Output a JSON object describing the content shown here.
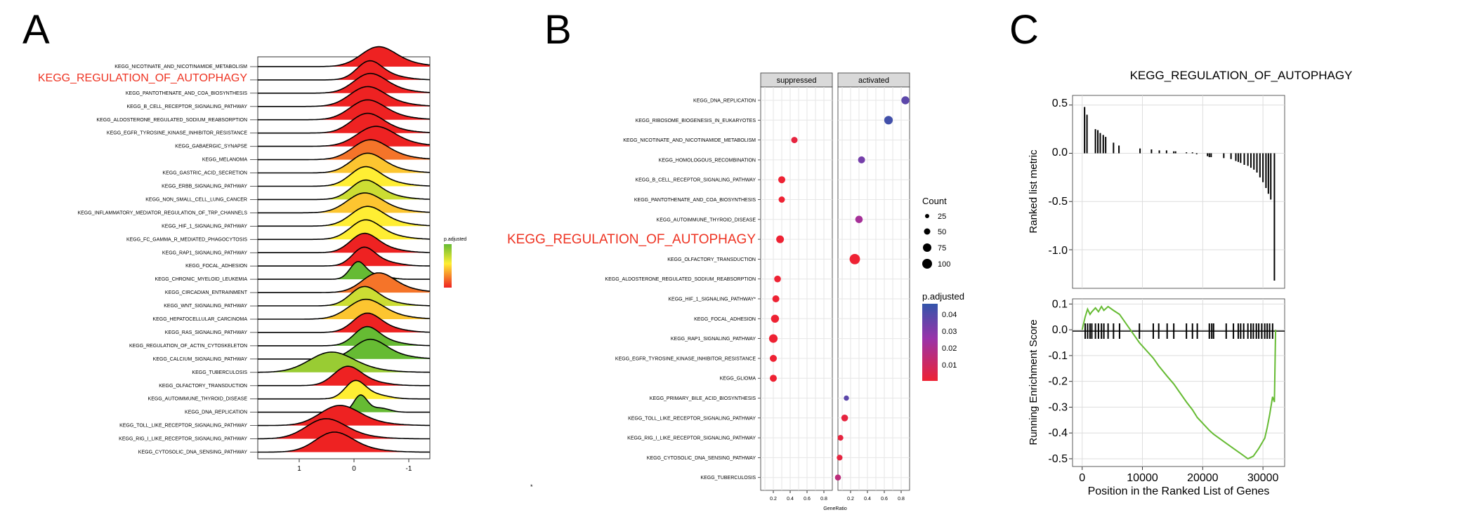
{
  "panels": {
    "a": {
      "letter": "A",
      "pathways": [
        "KEGG_NICOTINATE_AND_NICOTINAMIDE_METABOLISM",
        "KEGG_REGULATION_OF_AUTOPHAGY",
        "KEGG_PANTOTHENATE_AND_COA_BIOSYNTHESIS",
        "KEGG_B_CELL_RECEPTOR_SIGNALING_PATHWAY",
        "KEGG_ALDOSTERONE_REGULATED_SODIUM_REABSORPTION",
        "KEGG_EGFR_TYROSINE_KINASE_INHIBITOR_RESISTANCE",
        "KEGG_GABAERGIC_SYNAPSE",
        "KEGG_MELANOMA",
        "KEGG_GASTRIC_ACID_SECRETION",
        "KEGG_ERBB_SIGNALING_PATHWAY",
        "KEGG_NON_SMALL_CELL_LUNG_CANCER",
        "KEGG_INFLAMMATORY_MEDIATOR_REGULATION_OF_TRP_CHANNELS",
        "KEGG_HIF_1_SIGNALING_PATHWAY",
        "KEGG_FC_GAMMA_R_MEDIATED_PHAGOCYTOSIS",
        "KEGG_RAP1_SIGNALING_PATHWAY",
        "KEGG_FOCAL_ADHESION",
        "KEGG_CHRONIC_MYELOID_LEUKEMIA",
        "KEGG_CIRCADIAN_ENTRAINMENT",
        "KEGG_WNT_SIGNALING_PATHWAY",
        "KEGG_HEPATOCELLULAR_CARCINOMA",
        "KEGG_RAS_SIGNALING_PATHWAY",
        "KEGG_REGULATION_OF_ACTIN_CYTOSKELETON",
        "KEGG_CALCIUM_SIGNALING_PATHWAY",
        "KEGG_TUBERCULOSIS",
        "KEGG_OLFACTORY_TRANSDUCTION",
        "KEGG_AUTOIMMUNE_THYROID_DISEASE",
        "KEGG_DNA_REPLICATION",
        "KEGG_TOLL_LIKE_RECEPTOR_SIGNALING_PATHWAY",
        "KEGG_RIG_I_LIKE_RECEPTOR_SIGNALING_PATHWAY",
        "KEGG_CYTOSOLIC_DNA_SENSING_PATHWAY"
      ],
      "highlight_index": 1,
      "ticks": [
        "1",
        "0",
        "-1"
      ],
      "legend_title": "p.adjusted"
    },
    "b": {
      "letter": "B",
      "facets": [
        "suppressed",
        "activated"
      ],
      "xlabel": "GeneRatio",
      "x_ticks": [
        "0.2",
        "0.4",
        "0.6",
        "0.8"
      ],
      "size_legend_title": "Count",
      "size_legend_values": [
        "25",
        "50",
        "75",
        "100"
      ],
      "color_legend_title": "p.adjusted",
      "color_legend_ticks": [
        "0.04",
        "0.03",
        "0.02",
        "0.01"
      ],
      "highlight_index": 7,
      "stray_mark": "*"
    },
    "c": {
      "letter": "C",
      "title": "KEGG_REGULATION_OF_AUTOPHAGY",
      "top_ylabel": "Ranked list metric",
      "bottom_ylabel": "Running Enrichment Score",
      "xlabel": "Position in the Ranked List of Genes",
      "top_y_ticks": [
        "0.5",
        "0.0",
        "-0.5",
        "-1.0"
      ],
      "bottom_y_ticks": [
        "0.1",
        "0.0",
        "-0.1",
        "-0.2",
        "-0.3",
        "-0.4",
        "-0.5"
      ],
      "x_ticks": [
        "0",
        "10000",
        "20000",
        "30000"
      ]
    }
  },
  "colors": {
    "high_p": "#66bb33",
    "mid_p": "#ffee33",
    "low_p": "#ee2222",
    "highlight_label": "#ee3322",
    "enrichment_line": "#66bb33",
    "dot_high_p": "#3355aa",
    "dot_low_p": "#ee2233"
  },
  "chart_data": [
    {
      "type": "ridgeline",
      "x_scale": "reversed",
      "xlim": [
        1.8,
        -1.3
      ],
      "categories": [
        "KEGG_NICOTINATE_AND_NICOTINAMIDE_METABOLISM",
        "KEGG_REGULATION_OF_AUTOPHAGY",
        "KEGG_PANTOTHENATE_AND_COA_BIOSYNTHESIS",
        "KEGG_B_CELL_RECEPTOR_SIGNALING_PATHWAY",
        "KEGG_ALDOSTERONE_REGULATED_SODIUM_REABSORPTION",
        "KEGG_EGFR_TYROSINE_KINASE_INHIBITOR_RESISTANCE",
        "KEGG_GABAERGIC_SYNAPSE",
        "KEGG_MELANOMA",
        "KEGG_GASTRIC_ACID_SECRETION",
        "KEGG_ERBB_SIGNALING_PATHWAY",
        "KEGG_NON_SMALL_CELL_LUNG_CANCER",
        "KEGG_INFLAMMATORY_MEDIATOR_REGULATION_OF_TRP_CHANNELS",
        "KEGG_HIF_1_SIGNALING_PATHWAY",
        "KEGG_FC_GAMMA_R_MEDIATED_PHAGOCYTOSIS",
        "KEGG_RAP1_SIGNALING_PATHWAY",
        "KEGG_FOCAL_ADHESION",
        "KEGG_CHRONIC_MYELOID_LEUKEMIA",
        "KEGG_CIRCADIAN_ENTRAINMENT",
        "KEGG_WNT_SIGNALING_PATHWAY",
        "KEGG_HEPATOCELLULAR_CARCINOMA",
        "KEGG_RAS_SIGNALING_PATHWAY",
        "KEGG_REGULATION_OF_ACTIN_CYTOSKELETON",
        "KEGG_CALCIUM_SIGNALING_PATHWAY",
        "KEGG_TUBERCULOSIS",
        "KEGG_OLFACTORY_TRANSDUCTION",
        "KEGG_AUTOIMMUNE_THYROID_DISEASE",
        "KEGG_DNA_REPLICATION",
        "KEGG_TOLL_LIKE_RECEPTOR_SIGNALING_PATHWAY",
        "KEGG_RIG_I_LIKE_RECEPTOR_SIGNALING_PATHWAY",
        "KEGG_CYTOSOLIC_DNA_SENSING_PATHWAY"
      ],
      "peaks": [
        -0.35,
        -0.2,
        -0.2,
        -0.15,
        -0.15,
        -0.15,
        -0.3,
        -0.2,
        -0.15,
        -0.12,
        -0.12,
        -0.1,
        -0.15,
        -0.12,
        -0.1,
        -0.1,
        0.0,
        -0.35,
        -0.1,
        -0.12,
        -0.15,
        -0.15,
        -0.2,
        0.5,
        0.2,
        0.05,
        -0.05,
        0.35,
        0.6,
        0.45
      ],
      "widths": [
        0.3,
        0.22,
        0.28,
        0.3,
        0.3,
        0.28,
        0.32,
        0.3,
        0.28,
        0.26,
        0.25,
        0.3,
        0.28,
        0.26,
        0.24,
        0.2,
        0.14,
        0.28,
        0.24,
        0.3,
        0.24,
        0.22,
        0.28,
        0.38,
        0.24,
        0.18,
        0.12,
        0.34,
        0.34,
        0.32
      ],
      "p_adjusted": [
        0.01,
        0.015,
        0.012,
        0.011,
        0.012,
        0.015,
        0.02,
        0.03,
        0.04,
        0.045,
        0.05,
        0.04,
        0.045,
        0.045,
        0.01,
        0.012,
        0.06,
        0.03,
        0.05,
        0.04,
        0.02,
        0.06,
        0.06,
        0.055,
        0.01,
        0.045,
        0.06,
        0.01,
        0.01,
        0.01
      ],
      "xticks": [
        1,
        0,
        -1
      ]
    },
    {
      "type": "scatter",
      "facets": [
        "suppressed",
        "activated"
      ],
      "categories": [
        "KEGG_DNA_REPLICATION",
        "KEGG_RIBOSOME_BIOGENESIS_IN_EUKARYOTES",
        "KEGG_NICOTINATE_AND_NICOTINAMIDE_METABOLISM",
        "KEGG_HOMOLOGOUS_RECOMBINATION",
        "KEGG_B_CELL_RECEPTOR_SIGNALING_PATHWAY",
        "KEGG_PANTOTHENATE_AND_COA_BIOSYNTHESIS",
        "KEGG_AUTOIMMUNE_THYROID_DISEASE",
        "KEGG_REGULATION_OF_AUTOPHAGY",
        "KEGG_OLFACTORY_TRANSDUCTION",
        "KEGG_ALDOSTERONE_REGULATED_SODIUM_REABSORPTION",
        "KEGG_HIF_1_SIGNALING_PATHWAY",
        "KEGG_FOCAL_ADHESION",
        "KEGG_RAP1_SIGNALING_PATHWAY",
        "KEGG_EGFR_TYROSINE_KINASE_INHIBITOR_RESISTANCE",
        "KEGG_GLIOMA",
        "KEGG_PRIMARY_BILE_ACID_BIOSYNTHESIS",
        "KEGG_TOLL_LIKE_RECEPTOR_SIGNALING_PATHWAY",
        "KEGG_RIG_I_LIKE_RECEPTOR_SIGNALING_PATHWAY",
        "KEGG_CYTOSOLIC_DNA_SENSING_PATHWAY",
        "KEGG_TUBERCULOSIS"
      ],
      "category_labels": [
        "KEGG_DNA_REPLICATION",
        "KEGG_RIBOSOME_BIOGENESIS_IN_EUKARYOTES",
        "KEGG_NICOTINATE_AND_NICOTINAMIDE_METABOLISM",
        "KEGG_HOMOLOGOUS_RECOMBINATION",
        "KEGG_B_CELL_RECEPTOR_SIGNALING_PATHWAY",
        "KEGG_PANTOTHENATE_AND_COA_BIOSYNTHESIS",
        "KEGG_AUTOIMMUNE_THYROID_DISEASE",
        "KEGG_REGULATION_OF_AUTOPHAGY",
        "KEGG_OLFACTORY_TRANSDUCTION",
        "KEGG_ALDOSTERONE_REGULATED_SODIUM_REABSORPTION",
        "KEGG_HIF_1_SIGNALING_PATHWAY*",
        "KEGG_FOCAL_ADHESION",
        "KEGG_RAP1_SIGNALING_PATHWAY",
        "KEGG_EGFR_TYROSINE_KINASE_INHIBITOR_RESISTANCE",
        "KEGG_GLIOMA",
        "KEGG_PRIMARY_BILE_ACID_BIOSYNTHESIS",
        "KEGG_TOLL_LIKE_RECEPTOR_SIGNALING_PATHWAY",
        "KEGG_RIG_I_LIKE_RECEPTOR_SIGNALING_PATHWAY",
        "KEGG_CYTOSOLIC_DNA_SENSING_PATHWAY",
        "KEGG_TUBERCULOSIS"
      ],
      "points": [
        {
          "facet": "activated",
          "gene_ratio": 0.85,
          "count": 45,
          "p_adjusted": 0.04
        },
        {
          "facet": "activated",
          "gene_ratio": 0.65,
          "count": 55,
          "p_adjusted": 0.045
        },
        {
          "facet": "suppressed",
          "gene_ratio": 0.45,
          "count": 20,
          "p_adjusted": 0.01
        },
        {
          "facet": "activated",
          "gene_ratio": 0.33,
          "count": 30,
          "p_adjusted": 0.035
        },
        {
          "facet": "suppressed",
          "gene_ratio": 0.3,
          "count": 30,
          "p_adjusted": 0.008
        },
        {
          "facet": "suppressed",
          "gene_ratio": 0.3,
          "count": 20,
          "p_adjusted": 0.008
        },
        {
          "facet": "activated",
          "gene_ratio": 0.3,
          "count": 35,
          "p_adjusted": 0.025
        },
        {
          "facet": "suppressed",
          "gene_ratio": 0.28,
          "count": 40,
          "p_adjusted": 0.008
        },
        {
          "facet": "activated",
          "gene_ratio": 0.25,
          "count": 95,
          "p_adjusted": 0.008
        },
        {
          "facet": "suppressed",
          "gene_ratio": 0.25,
          "count": 25,
          "p_adjusted": 0.008
        },
        {
          "facet": "suppressed",
          "gene_ratio": 0.23,
          "count": 30,
          "p_adjusted": 0.008
        },
        {
          "facet": "suppressed",
          "gene_ratio": 0.22,
          "count": 45,
          "p_adjusted": 0.008
        },
        {
          "facet": "suppressed",
          "gene_ratio": 0.2,
          "count": 55,
          "p_adjusted": 0.008
        },
        {
          "facet": "suppressed",
          "gene_ratio": 0.2,
          "count": 30,
          "p_adjusted": 0.008
        },
        {
          "facet": "suppressed",
          "gene_ratio": 0.2,
          "count": 30,
          "p_adjusted": 0.008
        },
        {
          "facet": "activated",
          "gene_ratio": 0.15,
          "count": 10,
          "p_adjusted": 0.04
        },
        {
          "facet": "activated",
          "gene_ratio": 0.13,
          "count": 25,
          "p_adjusted": 0.01
        },
        {
          "facet": "activated",
          "gene_ratio": 0.08,
          "count": 15,
          "p_adjusted": 0.01
        },
        {
          "facet": "activated",
          "gene_ratio": 0.07,
          "count": 15,
          "p_adjusted": 0.01
        },
        {
          "facet": "activated",
          "gene_ratio": 0.05,
          "count": 18,
          "p_adjusted": 0.02
        }
      ],
      "xlim": [
        0.05,
        0.9
      ],
      "xticks": [
        0.2,
        0.4,
        0.6,
        0.8
      ]
    },
    {
      "type": "line",
      "subtype": "gsea",
      "xlim": [
        -1600,
        33600
      ],
      "top_ylim": [
        -1.4,
        0.6
      ],
      "bottom_ylim": [
        -0.53,
        0.12
      ],
      "hit_positions": [
        500,
        900,
        1300,
        1600,
        2200,
        2700,
        3200,
        3600,
        4300,
        5200,
        6200,
        9500,
        11800,
        12700,
        14100,
        15200,
        17300,
        18300,
        19100,
        21100,
        21500,
        21800,
        23900,
        25100,
        25900,
        26300,
        26800,
        27500,
        28000,
        28400,
        28900,
        29300,
        29800,
        30300,
        30700,
        31100,
        31600
      ],
      "ranked_metric_bars": [
        {
          "x": 400,
          "y": 0.48
        },
        {
          "x": 800,
          "y": 0.4
        },
        {
          "x": 2200,
          "y": 0.25
        },
        {
          "x": 2600,
          "y": 0.24
        },
        {
          "x": 3000,
          "y": 0.21
        },
        {
          "x": 3500,
          "y": 0.19
        },
        {
          "x": 3900,
          "y": 0.17
        },
        {
          "x": 5200,
          "y": 0.11
        },
        {
          "x": 6100,
          "y": 0.08
        },
        {
          "x": 9600,
          "y": 0.05
        },
        {
          "x": 11500,
          "y": 0.04
        },
        {
          "x": 12800,
          "y": 0.03
        },
        {
          "x": 14000,
          "y": 0.03
        },
        {
          "x": 15200,
          "y": 0.02
        },
        {
          "x": 15500,
          "y": 0.02
        },
        {
          "x": 17300,
          "y": 0.01
        },
        {
          "x": 18300,
          "y": 0.01
        },
        {
          "x": 19000,
          "y": -0.01
        },
        {
          "x": 20800,
          "y": -0.03
        },
        {
          "x": 21100,
          "y": -0.04
        },
        {
          "x": 21400,
          "y": -0.04
        },
        {
          "x": 23500,
          "y": -0.05
        },
        {
          "x": 24700,
          "y": -0.06
        },
        {
          "x": 25500,
          "y": -0.08
        },
        {
          "x": 25900,
          "y": -0.09
        },
        {
          "x": 26300,
          "y": -0.1
        },
        {
          "x": 26900,
          "y": -0.12
        },
        {
          "x": 27500,
          "y": -0.13
        },
        {
          "x": 28000,
          "y": -0.15
        },
        {
          "x": 28500,
          "y": -0.17
        },
        {
          "x": 29000,
          "y": -0.2
        },
        {
          "x": 29500,
          "y": -0.25
        },
        {
          "x": 30000,
          "y": -0.3
        },
        {
          "x": 30500,
          "y": -0.36
        },
        {
          "x": 30900,
          "y": -0.42
        },
        {
          "x": 31300,
          "y": -0.48
        },
        {
          "x": 31900,
          "y": -1.32
        }
      ],
      "running_es_points": [
        {
          "x": 0,
          "y": 0.0
        },
        {
          "x": 500,
          "y": 0.05
        },
        {
          "x": 900,
          "y": 0.08
        },
        {
          "x": 1300,
          "y": 0.06
        },
        {
          "x": 1600,
          "y": 0.07
        },
        {
          "x": 2200,
          "y": 0.085
        },
        {
          "x": 2700,
          "y": 0.07
        },
        {
          "x": 3200,
          "y": 0.09
        },
        {
          "x": 3600,
          "y": 0.075
        },
        {
          "x": 4300,
          "y": 0.09
        },
        {
          "x": 5200,
          "y": 0.075
        },
        {
          "x": 6200,
          "y": 0.06
        },
        {
          "x": 9500,
          "y": -0.05
        },
        {
          "x": 11800,
          "y": -0.11
        },
        {
          "x": 12700,
          "y": -0.14
        },
        {
          "x": 14100,
          "y": -0.18
        },
        {
          "x": 15200,
          "y": -0.21
        },
        {
          "x": 17300,
          "y": -0.28
        },
        {
          "x": 18300,
          "y": -0.31
        },
        {
          "x": 19100,
          "y": -0.34
        },
        {
          "x": 21100,
          "y": -0.39
        },
        {
          "x": 21800,
          "y": -0.405
        },
        {
          "x": 23900,
          "y": -0.44
        },
        {
          "x": 25100,
          "y": -0.46
        },
        {
          "x": 26300,
          "y": -0.48
        },
        {
          "x": 27500,
          "y": -0.5
        },
        {
          "x": 28400,
          "y": -0.49
        },
        {
          "x": 29300,
          "y": -0.46
        },
        {
          "x": 30300,
          "y": -0.42
        },
        {
          "x": 30700,
          "y": -0.38
        },
        {
          "x": 31100,
          "y": -0.33
        },
        {
          "x": 31600,
          "y": -0.26
        },
        {
          "x": 31900,
          "y": -0.28
        },
        {
          "x": 32100,
          "y": 0.0
        }
      ]
    }
  ]
}
